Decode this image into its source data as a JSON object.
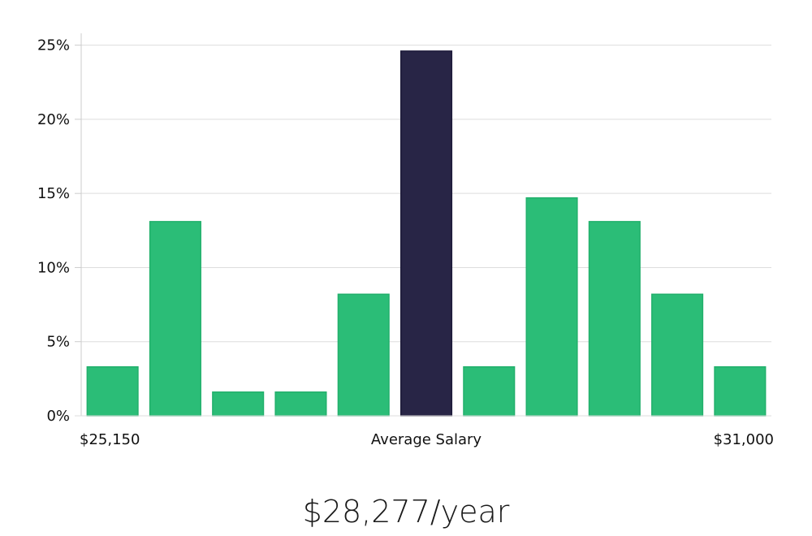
{
  "chart_data": {
    "type": "bar",
    "title": "",
    "xlabel": "Average Salary",
    "ylabel": "",
    "x_tick_labels": {
      "left": "$25,150",
      "center": "Average Salary",
      "right": "$31,000"
    },
    "categories": [
      "1",
      "2",
      "3",
      "4",
      "5",
      "6",
      "7",
      "8",
      "9",
      "10",
      "11"
    ],
    "values": [
      3.3,
      13.1,
      1.6,
      1.6,
      8.2,
      24.6,
      3.3,
      14.7,
      13.1,
      8.2,
      3.3
    ],
    "highlight_index": 5,
    "y_ticks": [
      0,
      5,
      10,
      15,
      20,
      25
    ],
    "y_tick_labels": [
      "0%",
      "5%",
      "10%",
      "15%",
      "20%",
      "25%"
    ],
    "ylim": [
      0,
      25.8
    ],
    "grid": true,
    "colors": {
      "bar": "#2bbd77",
      "bar_edge": "#22b06c",
      "highlight": "#282546",
      "highlight_edge": "#1e1b3a",
      "grid": "#dddddd",
      "axis": "#cccccc",
      "text": "#111111"
    }
  },
  "summary": {
    "salary_text": "$28,277/year"
  }
}
